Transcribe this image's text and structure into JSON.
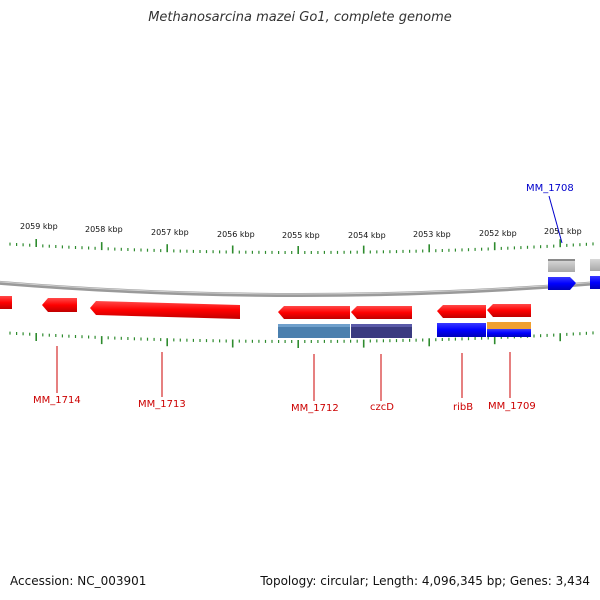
{
  "title": "Methanosarcina mazei Go1, complete genome",
  "footer": {
    "accession_label": "Accession:",
    "accession": "NC_003901",
    "topology_label": "Topology:",
    "topology": "circular",
    "length_label": "Length:",
    "length": "4,096,345 bp",
    "genes_label": "Genes:",
    "genes": "3,434"
  },
  "colors": {
    "cds_red": "#ff0000",
    "rna_blue": "#0000ff",
    "tick_green": "#2e8b2e",
    "backbone_grey": "#9a9a9a",
    "label_red": "#cc0000",
    "label_blue": "#0000cc",
    "domain_steel": "#4a7fae",
    "domain_navy": "#3a3a80",
    "domain_orange": "#f0a030",
    "pseudo_grey": "#bdbdbd"
  },
  "scale_labels": [
    "2059 kbp",
    "2058 kbp",
    "2057 kbp",
    "2056 kbp",
    "2055 kbp",
    "2054 kbp",
    "2053 kbp",
    "2052 kbp",
    "2051 kbp"
  ],
  "gene_labels": [
    {
      "name": "MM_1714",
      "color": "red"
    },
    {
      "name": "MM_1713",
      "color": "red"
    },
    {
      "name": "MM_1712",
      "color": "red"
    },
    {
      "name": "czcD",
      "color": "red"
    },
    {
      "name": "ribB",
      "color": "red"
    },
    {
      "name": "MM_1709",
      "color": "red"
    },
    {
      "name": "MM_1708",
      "color": "blue"
    }
  ]
}
